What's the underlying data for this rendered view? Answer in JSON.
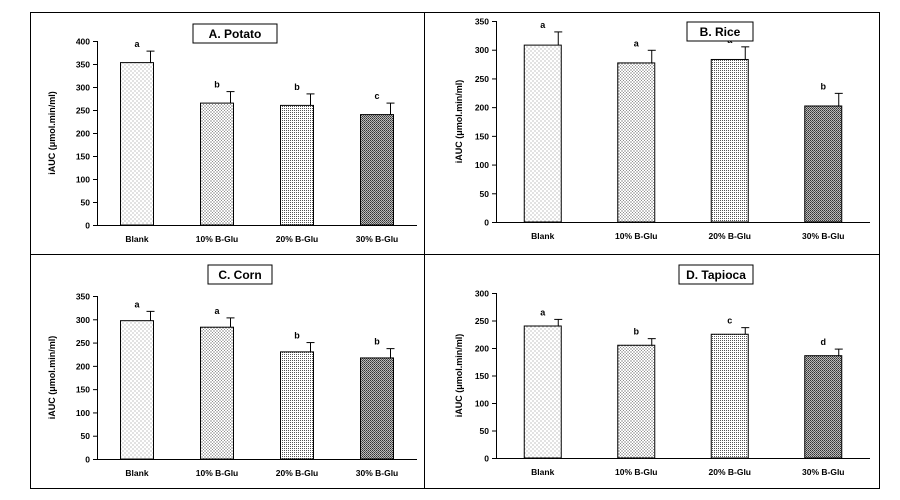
{
  "chart_data": [
    {
      "type": "bar",
      "title": "A. Potato",
      "ylabel": "iAUC (μmol.min/ml)",
      "categories": [
        "Blank",
        "10% B-Glu",
        "20% B-Glu",
        "30% B-Glu"
      ],
      "values": [
        353,
        265,
        260,
        240
      ],
      "errors": [
        25,
        25,
        25,
        25
      ],
      "significance": [
        "a",
        "b",
        "b",
        "c"
      ],
      "ylim": [
        0,
        400
      ],
      "yticks": [
        0,
        50,
        100,
        150,
        200,
        250,
        300,
        350,
        400
      ],
      "grid": false
    },
    {
      "type": "bar",
      "title": "B. Rice",
      "ylabel": "iAUC (μmol.min/ml)",
      "categories": [
        "Blank",
        "10% B-Glu",
        "20% B-Glu",
        "30% B-Glu"
      ],
      "values": [
        308,
        277,
        283,
        202
      ],
      "errors": [
        23,
        22,
        22,
        22
      ],
      "significance": [
        "a",
        "a",
        "a",
        "b"
      ],
      "ylim": [
        0,
        350
      ],
      "yticks": [
        0,
        50,
        100,
        150,
        200,
        250,
        300,
        350
      ],
      "grid": false
    },
    {
      "type": "bar",
      "title": "C. Corn",
      "ylabel": "iAUC (μmol.min/ml)",
      "categories": [
        "Blank",
        "10% B-Glu",
        "20% B-Glu",
        "30% B-Glu"
      ],
      "values": [
        297,
        283,
        230,
        217
      ],
      "errors": [
        20,
        20,
        20,
        20
      ],
      "significance": [
        "a",
        "a",
        "b",
        "b"
      ],
      "ylim": [
        0,
        350
      ],
      "yticks": [
        0,
        50,
        100,
        150,
        200,
        250,
        300,
        350
      ],
      "grid": false
    },
    {
      "type": "bar",
      "title": "D. Tapioca",
      "ylabel": "iAUC (μmol.min/ml)",
      "categories": [
        "Blank",
        "10% B-Glu",
        "20% B-Glu",
        "30% B-Glu"
      ],
      "values": [
        240,
        205,
        225,
        186
      ],
      "errors": [
        12,
        12,
        12,
        12
      ],
      "significance": [
        "a",
        "b",
        "c",
        "d"
      ],
      "ylim": [
        0,
        300
      ],
      "yticks": [
        0,
        50,
        100,
        150,
        200,
        250,
        300
      ],
      "grid": false
    }
  ]
}
